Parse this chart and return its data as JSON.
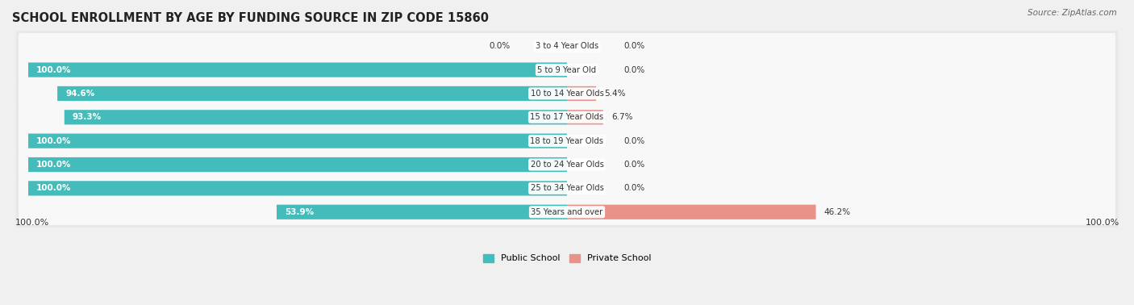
{
  "title": "SCHOOL ENROLLMENT BY AGE BY FUNDING SOURCE IN ZIP CODE 15860",
  "source": "Source: ZipAtlas.com",
  "categories": [
    "3 to 4 Year Olds",
    "5 to 9 Year Old",
    "10 to 14 Year Olds",
    "15 to 17 Year Olds",
    "18 to 19 Year Olds",
    "20 to 24 Year Olds",
    "25 to 34 Year Olds",
    "35 Years and over"
  ],
  "public_values": [
    0.0,
    100.0,
    94.6,
    93.3,
    100.0,
    100.0,
    100.0,
    53.9
  ],
  "private_values": [
    0.0,
    0.0,
    5.4,
    6.7,
    0.0,
    0.0,
    0.0,
    46.2
  ],
  "public_color": "#45BCBC",
  "private_color": "#E8928A",
  "public_label": "Public School",
  "private_label": "Private School",
  "background_color": "#f0f0f0",
  "row_bg_color": "#e8e8ec",
  "inner_bg_color": "#f8f8f8",
  "title_fontsize": 10.5,
  "bar_height": 0.62,
  "x_axis_label_left": "100.0%",
  "x_axis_label_right": "100.0%",
  "max_val": 100
}
